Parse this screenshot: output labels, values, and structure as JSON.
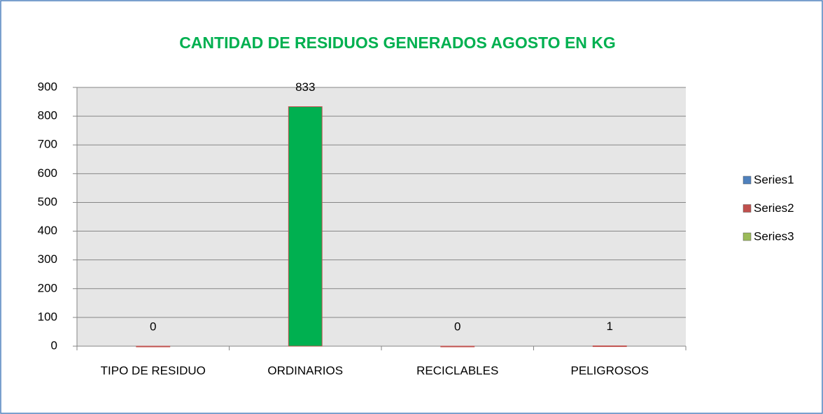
{
  "chart_data": {
    "type": "bar",
    "title": "CANTIDAD DE RESIDUOS GENERADOS AGOSTO EN KG",
    "categories": [
      "TIPO DE RESIDUO",
      "ORDINARIOS",
      "RECICLABLES",
      "PELIGROSOS"
    ],
    "series": [
      {
        "name": "Series1",
        "color": "#4f81bd",
        "values": [
          null,
          null,
          null,
          null
        ]
      },
      {
        "name": "Series2",
        "color": "#c0504d",
        "point_colors": [
          null,
          "#00b050",
          null,
          null
        ],
        "values": [
          0,
          833,
          0,
          1
        ]
      },
      {
        "name": "Series3",
        "color": "#9bbb59",
        "values": [
          null,
          null,
          null,
          null
        ]
      }
    ],
    "ylim": [
      0,
      900
    ],
    "yticks": [
      0,
      100,
      200,
      300,
      400,
      500,
      600,
      700,
      800,
      900
    ],
    "grid": true,
    "legend": "right",
    "data_labels": true
  }
}
